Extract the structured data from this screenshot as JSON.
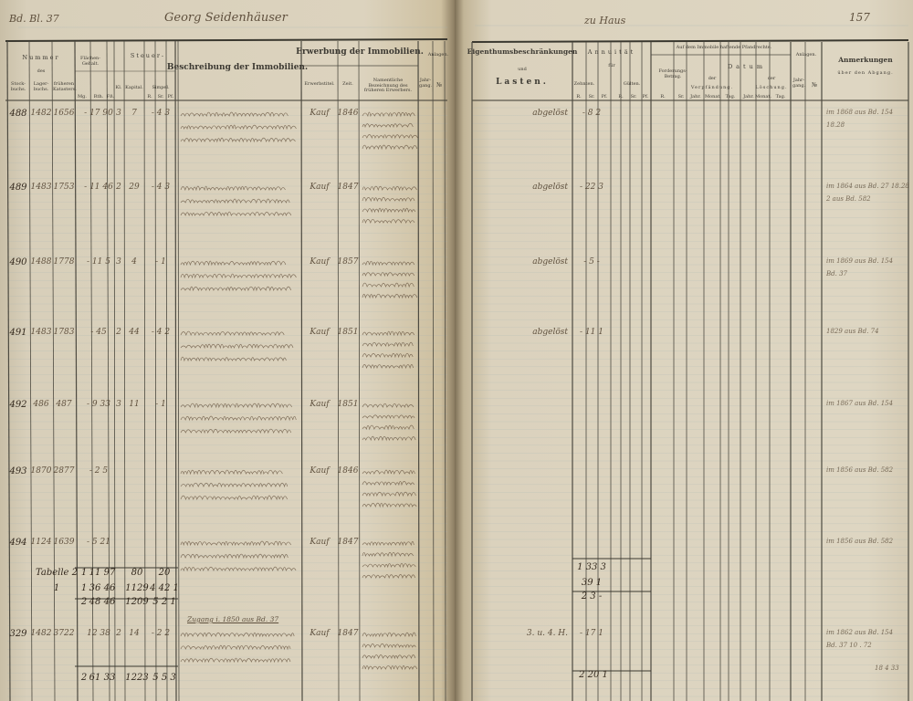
{
  "top": {
    "left_ref": "Bd. Bl. 37",
    "left_name": "Georg Seidenhäuser",
    "right_place": "zu Haus",
    "page_number": "157"
  },
  "left_header": {
    "nummer": "Nummer",
    "des": "des",
    "stockbuchs": "Stock-buchs.",
    "lagerbuchs": "Lager-buchs.",
    "kataster": "früheren Katasters.",
    "flaechen": "Flächen-Gehalt.",
    "mg": "Mg.",
    "rth": "Rth.",
    "fs": "Fß.",
    "steuer": "Steuer-",
    "kl": "Kl.",
    "kapital": "Kapital.",
    "simpel": "Simpel.",
    "r": "R.",
    "sr": "Sr.",
    "pf": "Pf.",
    "beschreibung": "Beschreibung der Immobilien.",
    "erwerbung": "Erwerbung der Immobilien.",
    "erwerbstitel": "Erwerbstitel.",
    "zeit": "Zeit.",
    "frueherer": "Namentliche Bezeichnung des früheren Erwerbers.",
    "anlagen": "Anlagen.",
    "jahrgang": "Jahr-gang.",
    "nr": "№"
  },
  "right_header": {
    "eigenthum": "Eigenthumsbeschränkungen",
    "und": "und",
    "lasten": "Lasten.",
    "annuitaet": "Annuität",
    "fuer": "für",
    "zehnten": "Zehnten.",
    "gueltten": "Gülten.",
    "r": "R.",
    "sr": "Sr.",
    "pf": "Pf.",
    "pfandrechte": "Auf dem Immobile haftende Pfandrechte.",
    "forderung": "Forderungs-Betrag.",
    "datum": "Datum",
    "der1": "der",
    "verpfaendung": "Verpfändung.",
    "der2": "der",
    "loeschung": "Löschung.",
    "jahr": "Jahr.",
    "monat": "Monat.",
    "tag": "Tag.",
    "anlagen": "Anlagen.",
    "jahrgang": "Jahr-gang.",
    "nr": "№",
    "anmerkungen": "Anmerkungen",
    "abgang": "über den Abgang."
  },
  "rows": [
    {
      "nr": "488",
      "lager": "1482",
      "kataster": "1656",
      "flaeche": "- 17 90",
      "klasse": "3",
      "kapital": "7",
      "simpel": "- 4 3",
      "titel": "Kauf",
      "zeit": "1846",
      "last": "abgelöst",
      "annuitaet": "- 8 2",
      "anmerkung": [
        "im 1868 aus Bd. 154",
        "18.28"
      ]
    },
    {
      "nr": "489",
      "lager": "1483",
      "kataster": "1753",
      "flaeche": "- 11 46",
      "klasse": "2",
      "kapital": "29",
      "simpel": "- 4 3",
      "titel": "Kauf",
      "zeit": "1847",
      "last": "abgelöst",
      "annuitaet": "- 22 3",
      "anmerkung": [
        "im 1864 aus Bd. 27 18.28",
        "2 aus Bd. 582"
      ]
    },
    {
      "nr": "490",
      "lager": "1488",
      "kataster": "1778",
      "flaeche": "- 11 5",
      "klasse": "3",
      "kapital": "4",
      "simpel": "- 1",
      "titel": "Kauf",
      "zeit": "1857",
      "last": "abgelöst",
      "annuitaet": "- 5 -",
      "anmerkung": [
        "im 1869 aus Bd. 154",
        "Bd. 37"
      ]
    },
    {
      "nr": "491",
      "lager": "1483",
      "kataster": "1783",
      "flaeche": "- 45",
      "klasse": "2",
      "kapital": "44",
      "simpel": "- 4 2",
      "titel": "Kauf",
      "zeit": "1851",
      "last": "abgelöst",
      "annuitaet": "- 11 1",
      "anmerkung": [
        "1829 aus Bd. 74"
      ]
    },
    {
      "nr": "492",
      "lager": "486",
      "kataster": "487",
      "flaeche": "- 9 33",
      "klasse": "3",
      "kapital": "11",
      "simpel": "- 1",
      "titel": "Kauf",
      "zeit": "1851",
      "last": "",
      "annuitaet": "",
      "anmerkung": [
        "im 1867 aus Bd. 154"
      ]
    },
    {
      "nr": "493",
      "lager": "1870",
      "kataster": "2877",
      "flaeche": "- 2 5",
      "klasse": "",
      "kapital": "",
      "simpel": "",
      "titel": "Kauf",
      "zeit": "1846",
      "last": "",
      "annuitaet": "",
      "anmerkung": [
        "im 1856 aus Bd. 582"
      ]
    },
    {
      "nr": "494",
      "lager": "1124",
      "kataster": "1639",
      "flaeche": "- 5 21",
      "klasse": "",
      "kapital": "",
      "simpel": "",
      "titel": "Kauf",
      "zeit": "1847",
      "last": "",
      "annuitaet": "",
      "anmerkung": [
        "im 1856 aus Bd. 582"
      ]
    }
  ],
  "totals": [
    {
      "label": "Tabelle 2",
      "mg": "1",
      "flaeche": "11 97",
      "kapital": "80",
      "simpel": "20",
      "annuitaet": "1 33 3"
    },
    {
      "label": "1",
      "mg": "1",
      "flaeche": "36 46",
      "kapital": "1129",
      "simpel": "4 42 1",
      "annuitaet": "39 1"
    },
    {
      "label": "",
      "mg": "2",
      "flaeche": "48 46",
      "kapital": "1209",
      "simpel": "5 2 1",
      "annuitaet": "2 3 -"
    }
  ],
  "zugang": "Zugang i. 1850 aus Bd. 37",
  "extra_row": {
    "nr": "329",
    "lager": "1482",
    "kataster": "3722",
    "flaeche": "12 38",
    "klasse": "2",
    "kapital": "14",
    "simpel": "- 2 2",
    "titel": "Kauf",
    "zeit": "1847",
    "last": "3. u. 4. H.",
    "annuitaet": "- 17 1",
    "anmerkung": [
      "im 1862 aus Bd. 154",
      "Bd. 37  10 . 72"
    ]
  },
  "grand_total": {
    "mg": "2",
    "flaeche": "61 33",
    "kapital": "1223",
    "simpel": "5 5 3",
    "annuitaet": "2 20 1",
    "anmerkung": "18 4 33"
  },
  "colors": {
    "paper": "#dcd3be",
    "ink": "#4a3a28",
    "rule": "#4d4a40"
  }
}
